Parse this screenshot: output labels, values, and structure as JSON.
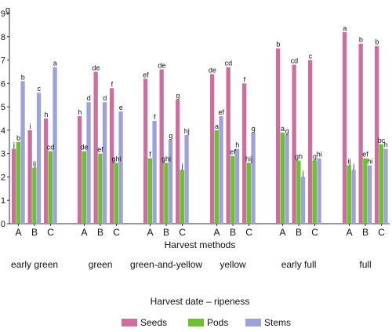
{
  "chart_data": {
    "type": "bar",
    "unit_label": "g",
    "ylim": [
      0,
      9
    ],
    "y_ticks": [
      0,
      1,
      2,
      3,
      4,
      5,
      6,
      7,
      8,
      9
    ],
    "grid": false,
    "xlabel": "Harvest methods",
    "group_axis_label": "Harvest date – ripeness",
    "methods": [
      "A",
      "B",
      "C"
    ],
    "groups": [
      {
        "name": "early green",
        "values": {
          "Seeds": [
            3.2,
            4.0,
            4.5
          ],
          "Pods": [
            3.5,
            2.4,
            3.1
          ],
          "Stems": [
            6.1,
            5.6,
            6.7
          ]
        },
        "labels": {
          "Seeds": [
            "j",
            "i",
            "h"
          ],
          "Pods": [
            "b",
            "ij",
            "cd"
          ],
          "Stems": [
            "b",
            "c",
            "a"
          ]
        }
      },
      {
        "name": "green",
        "values": {
          "Seeds": [
            4.6,
            6.5,
            5.8
          ],
          "Pods": [
            3.1,
            3.0,
            2.6
          ],
          "Stems": [
            5.2,
            5.2,
            4.8
          ]
        },
        "labels": {
          "Seeds": [
            "h",
            "de",
            "f"
          ],
          "Pods": [
            "de",
            "ef",
            "ghi"
          ],
          "Stems": [
            "d",
            "d",
            "e"
          ]
        }
      },
      {
        "name": "green-and-yellow",
        "values": {
          "Seeds": [
            6.2,
            6.6,
            5.3
          ],
          "Pods": [
            2.8,
            2.6,
            2.3
          ],
          "Stems": [
            4.4,
            3.6,
            3.8
          ]
        },
        "labels": {
          "Seeds": [
            "ef",
            "de",
            "g"
          ],
          "Pods": [
            "f",
            "ghi",
            "j"
          ],
          "Stems": [
            "f",
            "g",
            "hj"
          ]
        }
      },
      {
        "name": "yellow",
        "values": {
          "Seeds": [
            6.4,
            6.7,
            6.0
          ],
          "Pods": [
            4.0,
            2.9,
            2.6
          ],
          "Stems": [
            4.6,
            3.2,
            3.9
          ]
        },
        "labels": {
          "Seeds": [
            "de",
            "cd",
            "f"
          ],
          "Pods": [
            "a",
            "ef",
            "hij"
          ],
          "Stems": [
            "ef",
            "h",
            "g"
          ]
        }
      },
      {
        "name": "early full",
        "values": {
          "Seeds": [
            7.5,
            6.8,
            7.0
          ],
          "Pods": [
            3.9,
            2.7,
            2.7
          ],
          "Stems": [
            3.8,
            2.0,
            2.8
          ]
        },
        "labels": {
          "Seeds": [
            "b",
            "cd",
            "c"
          ],
          "Pods": [
            "a",
            "gh",
            "g"
          ],
          "Stems": [
            "g",
            "j",
            "hi"
          ]
        }
      },
      {
        "name": "full",
        "values": {
          "Seeds": [
            8.2,
            7.7,
            7.6
          ],
          "Pods": [
            2.5,
            2.8,
            3.4
          ],
          "Stems": [
            2.3,
            2.5,
            3.2
          ]
        },
        "labels": {
          "Seeds": [
            "a",
            "b",
            "b"
          ],
          "Pods": [
            "ij",
            "ef",
            "bc"
          ],
          "Stems": [
            "j",
            "hi",
            "h"
          ]
        }
      }
    ],
    "series": [
      {
        "name": "Seeds",
        "color": "#cc6f9e"
      },
      {
        "name": "Pods",
        "color": "#6cc131"
      },
      {
        "name": "Stems",
        "color": "#9da3d6"
      }
    ],
    "legend_position": "bottom-center"
  }
}
